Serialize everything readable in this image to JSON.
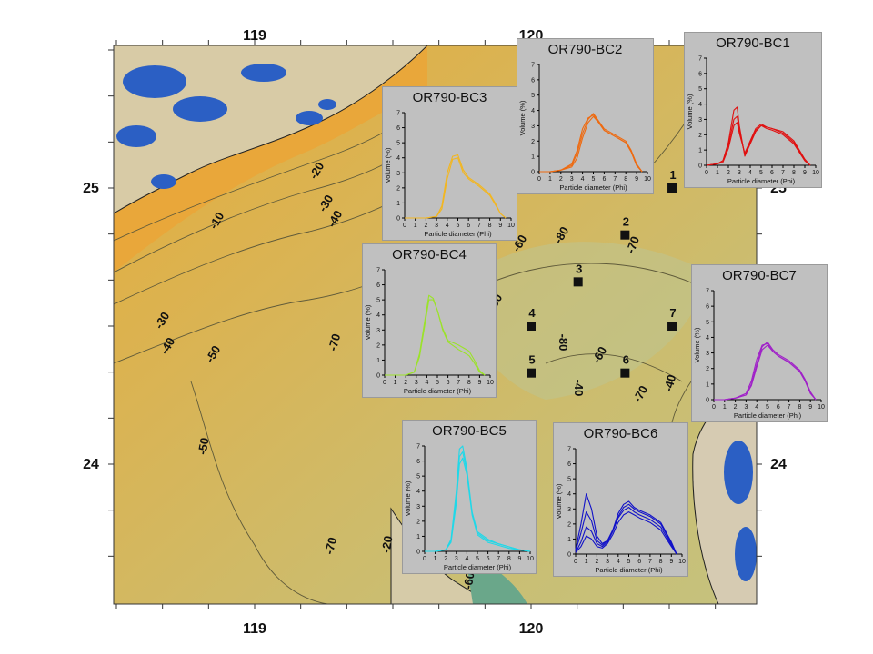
{
  "map": {
    "lon_labels_top": [
      "119",
      "120"
    ],
    "lon_labels_bottom": [
      "119",
      "120"
    ],
    "lat_labels_left": [
      "25",
      "24"
    ],
    "lat_labels_right": [
      "25",
      "24"
    ],
    "contour_labels": [
      "-20",
      "-30",
      "-40",
      "-10",
      "-60",
      "-30",
      "-40",
      "-50",
      "-70",
      "-60",
      "-80",
      "-70",
      "-80",
      "-40",
      "-60",
      "-80",
      "-10",
      "-50",
      "-70",
      "-70",
      "-40",
      "-60",
      "-20",
      "-60"
    ],
    "stations": [
      {
        "id": "1",
        "lon": 120.51,
        "lat": 25.0
      },
      {
        "id": "2",
        "lon": 120.34,
        "lat": 24.83
      },
      {
        "id": "3",
        "lon": 120.17,
        "lat": 24.66
      },
      {
        "id": "4",
        "lon": 120.0,
        "lat": 24.5
      },
      {
        "id": "7",
        "lon": 120.51,
        "lat": 24.5
      },
      {
        "id": "5",
        "lon": 120.0,
        "lat": 24.33
      },
      {
        "id": "6",
        "lon": 120.34,
        "lat": 24.33
      }
    ],
    "colors": {
      "shallow": "#e7ae3e",
      "mid": "#d5b454",
      "deep": "#c2c07a",
      "land": "#d9c9a6",
      "mountain": "#2b5fc4"
    }
  },
  "chart_data": [
    {
      "type": "line",
      "title": "OR790-BC1",
      "xlabel": "Particle diameter (Phi)",
      "ylabel": "Volume (%)",
      "xlim": [
        0,
        10
      ],
      "ylim": [
        0,
        7
      ],
      "x_ticks": [
        "0",
        "1",
        "2",
        "3",
        "4",
        "5",
        "6",
        "7",
        "8",
        "9",
        "10"
      ],
      "y_ticks": [
        "0",
        "1",
        "2",
        "3",
        "4",
        "5",
        "6",
        "7"
      ],
      "color": "#e01010",
      "series": [
        {
          "x": [
            0,
            1,
            1.5,
            2,
            2.5,
            2.8,
            3,
            3.5,
            4,
            4.5,
            5,
            5.5,
            6,
            7,
            8,
            9,
            9.5
          ],
          "y": [
            0,
            0.1,
            0.3,
            1.5,
            3.6,
            3.8,
            2.6,
            0.6,
            1.4,
            2.2,
            2.6,
            2.5,
            2.4,
            2.2,
            1.6,
            0.4,
            0
          ]
        },
        {
          "x": [
            0,
            1,
            1.5,
            2,
            2.5,
            2.8,
            3,
            3.5,
            4,
            4.5,
            5,
            5.5,
            6,
            7,
            8,
            9,
            9.5
          ],
          "y": [
            0,
            0.1,
            0.3,
            1.3,
            3.0,
            3.2,
            2.3,
            0.7,
            1.5,
            2.3,
            2.6,
            2.4,
            2.3,
            2.0,
            1.4,
            0.3,
            0
          ]
        },
        {
          "x": [
            0,
            1,
            1.5,
            2,
            2.5,
            2.8,
            3,
            3.5,
            4,
            4.5,
            5,
            5.5,
            6,
            7,
            8,
            9,
            9.5
          ],
          "y": [
            0,
            0.1,
            0.2,
            1.1,
            2.6,
            2.8,
            2.1,
            0.8,
            1.6,
            2.4,
            2.7,
            2.5,
            2.4,
            2.1,
            1.5,
            0.3,
            0
          ]
        }
      ]
    },
    {
      "type": "line",
      "title": "OR790-BC2",
      "xlabel": "Particle diameter (Phi)",
      "ylabel": "Volume (%)",
      "xlim": [
        0,
        10
      ],
      "ylim": [
        0,
        7
      ],
      "x_ticks": [
        "0",
        "1",
        "2",
        "3",
        "4",
        "5",
        "6",
        "7",
        "8",
        "9",
        "10"
      ],
      "y_ticks": [
        "0",
        "1",
        "2",
        "3",
        "4",
        "5",
        "6",
        "7"
      ],
      "color": "#ee6a10",
      "series": [
        {
          "x": [
            0,
            1,
            2,
            3,
            3.5,
            4,
            4.5,
            5,
            5.5,
            6,
            7,
            8,
            8.5,
            9,
            9.5
          ],
          "y": [
            0,
            0,
            0.1,
            0.4,
            1.2,
            2.5,
            3.4,
            3.8,
            3.3,
            2.8,
            2.4,
            2.0,
            1.4,
            0.5,
            0
          ]
        },
        {
          "x": [
            0,
            1,
            2,
            3,
            3.5,
            4,
            4.5,
            5,
            5.5,
            6,
            7,
            8,
            8.5,
            9,
            9.5
          ],
          "y": [
            0,
            0,
            0.1,
            0.3,
            0.9,
            2.2,
            3.2,
            3.6,
            3.2,
            2.7,
            2.3,
            1.9,
            1.3,
            0.4,
            0
          ]
        },
        {
          "x": [
            0,
            1,
            2,
            3,
            3.5,
            4,
            4.5,
            5,
            5.5,
            6,
            7,
            8,
            8.5,
            9,
            9.5
          ],
          "y": [
            0,
            0,
            0.1,
            0.5,
            1.4,
            2.8,
            3.5,
            3.7,
            3.2,
            2.7,
            2.3,
            1.9,
            1.3,
            0.4,
            0
          ]
        }
      ]
    },
    {
      "type": "line",
      "title": "OR790-BC3",
      "xlabel": "Particle diameter (Phi)",
      "ylabel": "Volume (%)",
      "xlim": [
        0,
        10
      ],
      "ylim": [
        0,
        7
      ],
      "x_ticks": [
        "0",
        "1",
        "2",
        "3",
        "4",
        "5",
        "6",
        "7",
        "8",
        "9",
        "10"
      ],
      "y_ticks": [
        "0",
        "1",
        "2",
        "3",
        "4",
        "5",
        "6",
        "7"
      ],
      "color": "#f2b620",
      "series": [
        {
          "x": [
            0,
            1,
            2,
            3,
            3.5,
            4,
            4.5,
            5,
            5.5,
            6,
            7,
            8,
            8.5,
            9,
            9.5
          ],
          "y": [
            0,
            0,
            0,
            0.1,
            0.8,
            3.0,
            4.1,
            4.2,
            3.2,
            2.7,
            2.2,
            1.6,
            1.0,
            0.3,
            0
          ]
        },
        {
          "x": [
            0,
            1,
            2,
            3,
            3.5,
            4,
            4.5,
            5,
            5.5,
            6,
            7,
            8,
            8.5,
            9,
            9.5
          ],
          "y": [
            0,
            0,
            0,
            0.1,
            0.6,
            2.6,
            3.9,
            4.0,
            3.0,
            2.6,
            2.1,
            1.5,
            0.9,
            0.3,
            0
          ]
        }
      ]
    },
    {
      "type": "line",
      "title": "OR790-BC4",
      "xlabel": "Particle diameter (Phi)",
      "ylabel": "Volume (%)",
      "xlim": [
        0,
        10
      ],
      "ylim": [
        0,
        7
      ],
      "x_ticks": [
        "0",
        "1",
        "2",
        "3",
        "4",
        "5",
        "6",
        "7",
        "8",
        "9",
        "10"
      ],
      "y_ticks": [
        "0",
        "1",
        "2",
        "3",
        "4",
        "5",
        "6",
        "7"
      ],
      "color": "#9be22a",
      "series": [
        {
          "x": [
            0,
            1,
            2,
            2.8,
            3.3,
            3.8,
            4.2,
            4.6,
            5,
            5.5,
            6,
            7,
            8,
            8.5,
            9,
            9.5
          ],
          "y": [
            0,
            0,
            0,
            0.2,
            1.4,
            3.6,
            5.3,
            5.1,
            4.3,
            3.0,
            2.2,
            1.7,
            1.3,
            0.8,
            0.2,
            0
          ]
        },
        {
          "x": [
            0,
            1,
            2,
            2.8,
            3.3,
            3.8,
            4.2,
            4.6,
            5,
            5.5,
            6,
            7,
            8,
            8.5,
            9,
            9.5
          ],
          "y": [
            0,
            0,
            0,
            0.2,
            1.2,
            3.3,
            5.0,
            5.0,
            4.3,
            3.1,
            2.3,
            2.0,
            1.6,
            1.0,
            0.3,
            0
          ]
        }
      ]
    },
    {
      "type": "line",
      "title": "OR790-BC5",
      "xlabel": "Particle diameter (Phi)",
      "ylabel": "Volume (%)",
      "xlim": [
        0,
        10
      ],
      "ylim": [
        0,
        7
      ],
      "x_ticks": [
        "0",
        "1",
        "2",
        "3",
        "4",
        "5",
        "6",
        "7",
        "8",
        "9",
        "10"
      ],
      "y_ticks": [
        "0",
        "1",
        "2",
        "3",
        "4",
        "5",
        "6",
        "7"
      ],
      "color": "#20d8e8",
      "series": [
        {
          "x": [
            0,
            1,
            2,
            2.5,
            3,
            3.3,
            3.6,
            4,
            4.5,
            5,
            6,
            7,
            8,
            9,
            10
          ],
          "y": [
            0,
            0,
            0.1,
            0.8,
            4.0,
            6.8,
            7.0,
            5.5,
            2.6,
            1.3,
            0.8,
            0.5,
            0.3,
            0.1,
            0
          ]
        },
        {
          "x": [
            0,
            1,
            2,
            2.5,
            3,
            3.3,
            3.6,
            4,
            4.5,
            5,
            6,
            7,
            8,
            9,
            10
          ],
          "y": [
            0,
            0,
            0.1,
            0.7,
            3.6,
            6.3,
            6.6,
            5.3,
            2.5,
            1.2,
            0.7,
            0.5,
            0.3,
            0.1,
            0
          ]
        },
        {
          "x": [
            0,
            1,
            2,
            2.5,
            3,
            3.3,
            3.6,
            4,
            4.5,
            5,
            6,
            7,
            8,
            9,
            10
          ],
          "y": [
            0,
            0,
            0.1,
            0.6,
            3.2,
            5.8,
            6.2,
            5.1,
            2.4,
            1.1,
            0.6,
            0.4,
            0.2,
            0.1,
            0
          ]
        }
      ]
    },
    {
      "type": "line",
      "title": "OR790-BC6",
      "xlabel": "Particle diameter (Phi)",
      "ylabel": "Volume (%)",
      "xlim": [
        0,
        10
      ],
      "ylim": [
        0,
        7
      ],
      "x_ticks": [
        "0",
        "1",
        "2",
        "3",
        "4",
        "5",
        "6",
        "7",
        "8",
        "9",
        "10"
      ],
      "y_ticks": [
        "0",
        "1",
        "2",
        "3",
        "4",
        "5",
        "6",
        "7"
      ],
      "color": "#1010c8",
      "series": [
        {
          "x": [
            0,
            0.5,
            1,
            1.5,
            2,
            2.5,
            3,
            3.5,
            4,
            4.5,
            5,
            5.5,
            6,
            7,
            8,
            9,
            9.5
          ],
          "y": [
            0.3,
            2.0,
            4.0,
            3.0,
            1.2,
            0.7,
            0.9,
            1.6,
            2.7,
            3.3,
            3.5,
            3.1,
            2.9,
            2.6,
            2.1,
            0.8,
            0
          ]
        },
        {
          "x": [
            0,
            0.5,
            1,
            1.5,
            2,
            2.5,
            3,
            3.5,
            4,
            4.5,
            5,
            5.5,
            6,
            7,
            8,
            9,
            9.5
          ],
          "y": [
            0.2,
            1.4,
            2.8,
            2.2,
            0.9,
            0.6,
            0.9,
            1.6,
            2.5,
            3.1,
            3.3,
            3.0,
            2.8,
            2.5,
            2.0,
            0.7,
            0
          ]
        },
        {
          "x": [
            0,
            0.5,
            1,
            1.5,
            2,
            2.5,
            3,
            3.5,
            4,
            4.5,
            5,
            5.5,
            6,
            7,
            8,
            9,
            9.5
          ],
          "y": [
            0.1,
            0.8,
            1.8,
            1.5,
            0.7,
            0.5,
            0.8,
            1.5,
            2.4,
            2.9,
            3.1,
            2.8,
            2.6,
            2.3,
            1.8,
            0.6,
            0
          ]
        },
        {
          "x": [
            0,
            0.5,
            1,
            1.5,
            2,
            2.5,
            3,
            3.5,
            4,
            4.5,
            5,
            5.5,
            6,
            7,
            8,
            9,
            9.5
          ],
          "y": [
            0.1,
            0.5,
            1.2,
            1.0,
            0.5,
            0.4,
            0.7,
            1.3,
            2.1,
            2.6,
            2.8,
            2.6,
            2.4,
            2.1,
            1.6,
            0.5,
            0
          ]
        }
      ]
    },
    {
      "type": "line",
      "title": "OR790-BC7",
      "xlabel": "Particle diameter (Phi)",
      "ylabel": "Volume (%)",
      "xlim": [
        0,
        10
      ],
      "ylim": [
        0,
        7
      ],
      "x_ticks": [
        "0",
        "1",
        "2",
        "3",
        "4",
        "5",
        "6",
        "7",
        "8",
        "9",
        "10"
      ],
      "y_ticks": [
        "0",
        "1",
        "2",
        "3",
        "4",
        "5",
        "6",
        "7"
      ],
      "color": "#a020c8",
      "series": [
        {
          "x": [
            0,
            1,
            2,
            3,
            3.5,
            4,
            4.5,
            5,
            5.5,
            6,
            7,
            8,
            8.5,
            9,
            9.5
          ],
          "y": [
            0,
            0,
            0.1,
            0.3,
            1.0,
            2.3,
            3.4,
            3.7,
            3.2,
            2.9,
            2.5,
            1.9,
            1.3,
            0.5,
            0
          ]
        },
        {
          "x": [
            0,
            1,
            2,
            3,
            3.5,
            4,
            4.5,
            5,
            5.5,
            6,
            7,
            8,
            8.5,
            9,
            9.5
          ],
          "y": [
            0,
            0,
            0.1,
            0.4,
            1.2,
            2.6,
            3.5,
            3.6,
            3.1,
            2.8,
            2.4,
            1.8,
            1.2,
            0.4,
            0
          ]
        },
        {
          "x": [
            0,
            1,
            2,
            3,
            3.5,
            4,
            4.5,
            5,
            5.5,
            6,
            7,
            8,
            8.5,
            9,
            9.5
          ],
          "y": [
            0,
            0,
            0.1,
            0.3,
            0.9,
            2.1,
            3.2,
            3.5,
            3.1,
            2.8,
            2.4,
            1.8,
            1.2,
            0.4,
            0
          ]
        }
      ]
    }
  ]
}
